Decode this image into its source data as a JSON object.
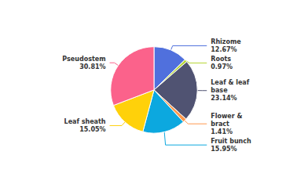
{
  "chart_data": {
    "type": "pie",
    "categories": [
      "Rhizome",
      "Roots",
      "Leaf & leaf\nbase",
      "Flower &\nbract",
      "Fruit bunch",
      "Leaf sheath",
      "Pseudostem"
    ],
    "values": [
      12.67,
      0.97,
      23.14,
      1.41,
      15.95,
      15.05,
      30.81
    ],
    "value_labels": [
      "12.67%",
      "0.97%",
      "23.14%",
      "1.41%",
      "15.95%",
      "15.05%",
      "30.81%"
    ],
    "data_labels": true
  }
}
